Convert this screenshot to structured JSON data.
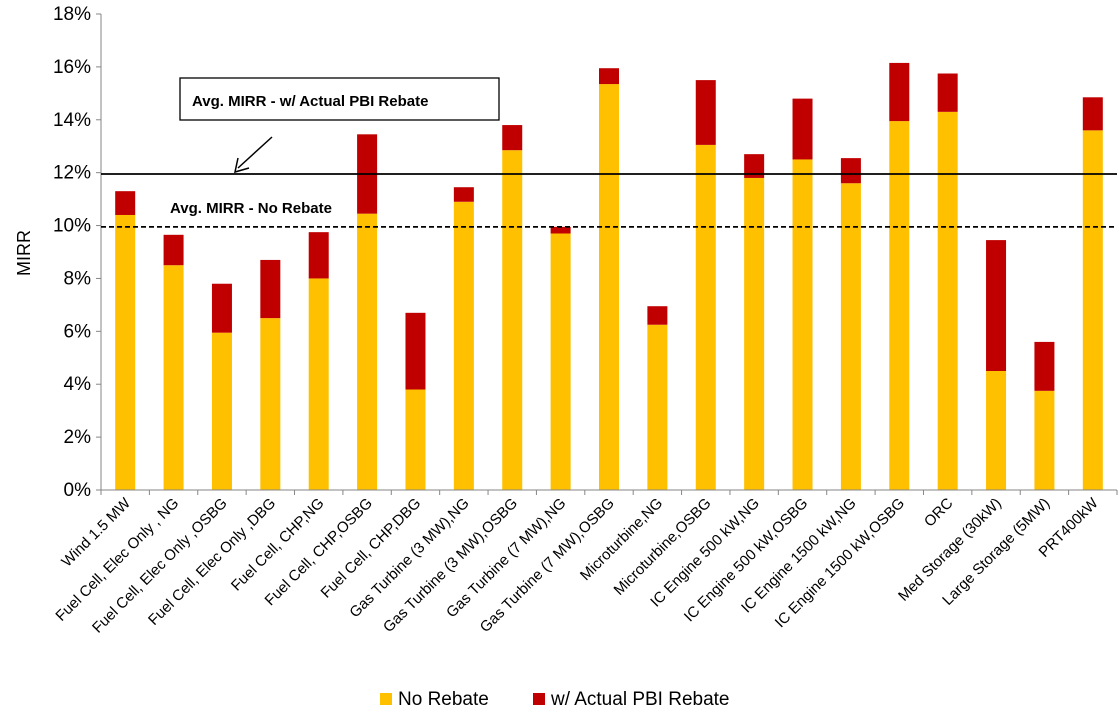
{
  "chart_data": {
    "type": "bar",
    "stacked": true,
    "ylabel": "MIRR",
    "xlabel": "",
    "ylim": [
      0,
      18
    ],
    "yticks": [
      "0%",
      "2%",
      "4%",
      "6%",
      "8%",
      "10%",
      "12%",
      "14%",
      "16%",
      "18%"
    ],
    "grid": false,
    "legend_position": "bottom",
    "categories": [
      "Wind 1.5 MW",
      "Fuel Cell, Elec Only , NG",
      "Fuel Cell, Elec Only ,OSBG",
      "Fuel Cell, Elec Only ,DBG",
      "Fuel Cell, CHP,NG",
      "Fuel Cell, CHP,OSBG",
      "Fuel Cell, CHP,DBG",
      "Gas Turbine (3 MW),NG",
      "Gas Turbine (3 MW),OSBG",
      "Gas Turbine (7 MW),NG",
      "Gas Turbine (7 MW),OSBG",
      "Microturbine,NG",
      "Microturbine,OSBG",
      "IC Engine 500 kW,NG",
      "IC Engine 500 kW,OSBG",
      "IC Engine 1500 kW,NG",
      "IC Engine 1500 kW,OSBG",
      "ORC",
      "Med Storage (30kW)",
      "Large Storage (5MW)",
      "PRT400kW"
    ],
    "series": [
      {
        "name": "No Rebate",
        "color": "#FFC000",
        "values": [
          10.4,
          8.5,
          5.95,
          6.5,
          8.0,
          10.45,
          3.8,
          10.9,
          12.85,
          9.7,
          15.35,
          6.25,
          13.05,
          11.8,
          12.5,
          11.6,
          13.95,
          14.3,
          4.5,
          3.75,
          13.6
        ]
      },
      {
        "name": "w/ Actual PBI Rebate",
        "color": "#C00000",
        "values": [
          0.9,
          1.15,
          1.85,
          2.2,
          1.75,
          3.0,
          2.9,
          0.55,
          0.95,
          0.25,
          0.6,
          0.7,
          2.45,
          0.9,
          2.3,
          0.95,
          2.2,
          1.45,
          4.95,
          1.85,
          1.25
        ]
      }
    ],
    "reference_lines": [
      {
        "value": 11.95,
        "style": "solid",
        "label": "Avg. MIRR - w/ Actual PBI Rebate"
      },
      {
        "value": 9.95,
        "style": "dashed",
        "label": "Avg. MIRR - No Rebate"
      }
    ]
  }
}
